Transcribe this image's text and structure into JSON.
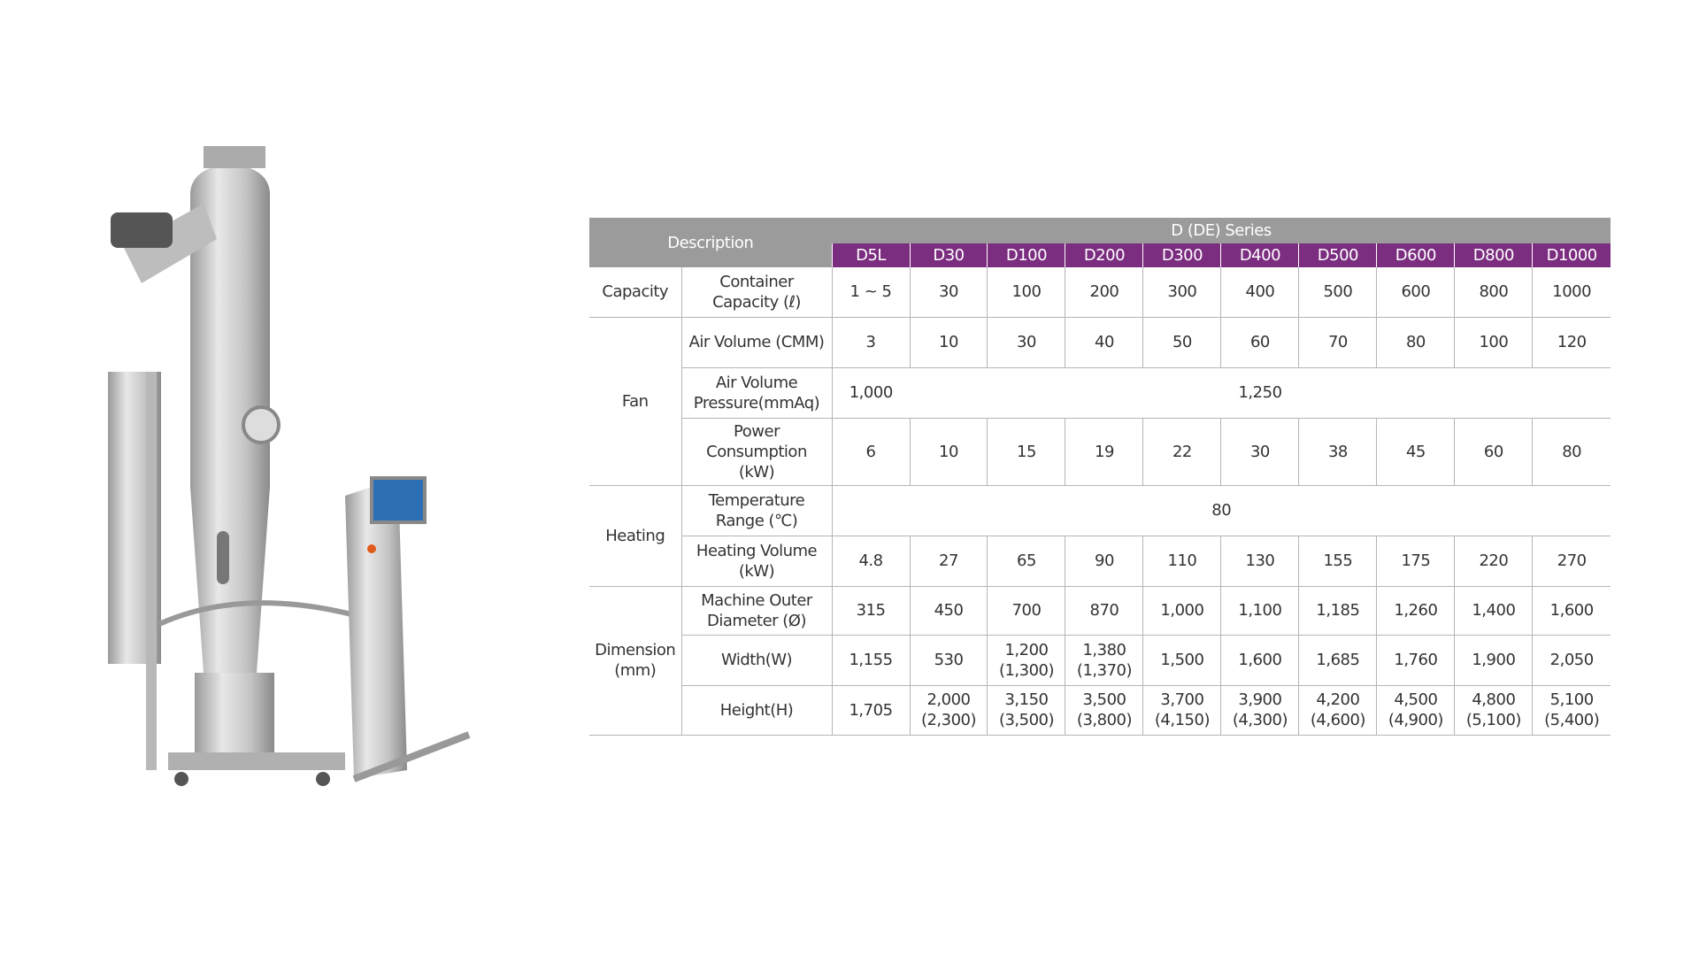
{
  "colors": {
    "header_gray": "#9b9b9b",
    "header_purple": "#7b2d80"
  },
  "image": {
    "alt": "fluid bed dryer machine with touchscreen control panel"
  },
  "table": {
    "description_label": "Description",
    "series_label": "D (DE) Series",
    "models": [
      "D5L",
      "D30",
      "D100",
      "D200",
      "D300",
      "D400",
      "D500",
      "D600",
      "D800",
      "D1000"
    ],
    "groups": [
      {
        "label": "Capacity",
        "rows": [
          {
            "label": "Container Capacity (ℓ)",
            "values": [
              "1 ~ 5",
              "30",
              "100",
              "200",
              "300",
              "400",
              "500",
              "600",
              "800",
              "1000"
            ]
          }
        ]
      },
      {
        "label": "Fan",
        "rows": [
          {
            "label": "Air Volume (CMM)",
            "values": [
              "3",
              "10",
              "30",
              "40",
              "50",
              "60",
              "70",
              "80",
              "100",
              "120"
            ]
          },
          {
            "label": "Air Volume Pressure(mmAq)",
            "values": [
              "1,000",
              "1,250"
            ],
            "spans": [
              1,
              9
            ]
          },
          {
            "label": "Power Consumption (kW)",
            "values": [
              "6",
              "10",
              "15",
              "19",
              "22",
              "30",
              "38",
              "45",
              "60",
              "80"
            ]
          }
        ]
      },
      {
        "label": "Heating",
        "rows": [
          {
            "label": "Temperature Range (℃)",
            "values": [
              "80"
            ],
            "spans": [
              10
            ]
          },
          {
            "label": "Heating Volume (kW)",
            "values": [
              "4.8",
              "27",
              "65",
              "90",
              "110",
              "130",
              "155",
              "175",
              "220",
              "270"
            ]
          }
        ]
      },
      {
        "label": "Dimension (mm)",
        "rows": [
          {
            "label": "Machine Outer Diameter (Ø)",
            "values": [
              "315",
              "450",
              "700",
              "870",
              "1,000",
              "1,100",
              "1,185",
              "1,260",
              "1,400",
              "1,600"
            ]
          },
          {
            "label": "Width(W)",
            "values": [
              "1,155",
              "530",
              "1,200 (1,300)",
              "1,380 (1,370)",
              "1,500",
              "1,600",
              "1,685",
              "1,760",
              "1,900",
              "2,050"
            ]
          },
          {
            "label": "Height(H)",
            "values": [
              "1,705",
              "2,000 (2,300)",
              "3,150 (3,500)",
              "3,500 (3,800)",
              "3,700 (4,150)",
              "3,900 (4,300)",
              "4,200 (4,600)",
              "4,500 (4,900)",
              "4,800 (5,100)",
              "5,100 (5,400)"
            ]
          }
        ]
      }
    ]
  }
}
